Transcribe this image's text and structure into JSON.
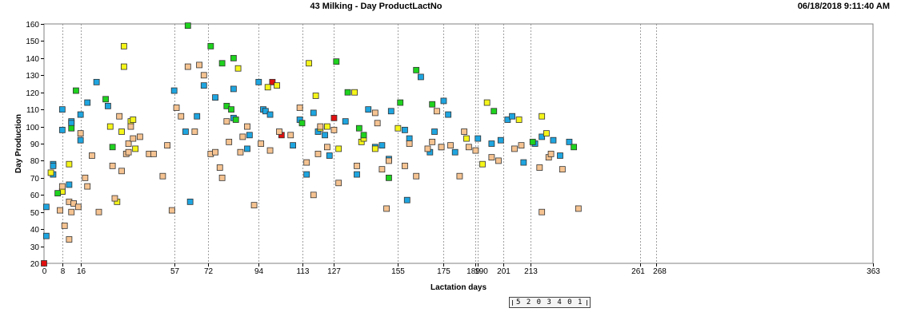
{
  "header": {
    "title": "43 Milking - Day ProductLactNo",
    "timestamp": "06/18/2018 9:11:40 AM"
  },
  "scrollbar": {
    "text": "5 2 0 3 4 0 1"
  },
  "chart_data": {
    "type": "scatter",
    "title": "43 Milking - Day ProductLactNo",
    "xlabel": "Lactation days",
    "ylabel": "Day Production",
    "xlim": [
      0,
      363
    ],
    "ylim": [
      20,
      160
    ],
    "yticks": [
      20,
      30,
      40,
      50,
      60,
      70,
      80,
      90,
      100,
      110,
      120,
      130,
      140,
      150,
      160
    ],
    "xticks": [
      0,
      8,
      16,
      57,
      72,
      94,
      113,
      127,
      155,
      175,
      189,
      190,
      201,
      213,
      261,
      268,
      363
    ],
    "xtick_labels": [
      "0",
      "8",
      "16",
      "57",
      "72",
      "94",
      "113",
      "127",
      "155",
      "175",
      "189",
      "190",
      "201",
      "213",
      "261",
      "268",
      "363"
    ],
    "grid": "vertical dashed lines at x ticks",
    "colors": {
      "red": "#e01010",
      "blue": "#1ea5e0",
      "yellow": "#f5f51a",
      "green": "#1ed21e",
      "tan": "#f5c391"
    },
    "series": [
      {
        "color": "red",
        "points": [
          [
            0,
            20
          ],
          [
            100,
            126
          ],
          [
            104,
            95
          ],
          [
            127,
            105
          ]
        ]
      },
      {
        "color": "blue",
        "points": [
          [
            1,
            36
          ],
          [
            1,
            53
          ],
          [
            4,
            78
          ],
          [
            4,
            77
          ],
          [
            4,
            72
          ],
          [
            8,
            110
          ],
          [
            8,
            98
          ],
          [
            8,
            62
          ],
          [
            11,
            66
          ],
          [
            12,
            103
          ],
          [
            12,
            102
          ],
          [
            16,
            107
          ],
          [
            16,
            92
          ],
          [
            19,
            114
          ],
          [
            23,
            126
          ],
          [
            28,
            112
          ],
          [
            57,
            121
          ],
          [
            62,
            97
          ],
          [
            64,
            56
          ],
          [
            67,
            106
          ],
          [
            70,
            124
          ],
          [
            75,
            117
          ],
          [
            83,
            105
          ],
          [
            83,
            122
          ],
          [
            89,
            87
          ],
          [
            90,
            95
          ],
          [
            94,
            126
          ],
          [
            96,
            110
          ],
          [
            97,
            109
          ],
          [
            99,
            107
          ],
          [
            109,
            89
          ],
          [
            112,
            104
          ],
          [
            115,
            72
          ],
          [
            118,
            108
          ],
          [
            120,
            97
          ],
          [
            123,
            95
          ],
          [
            125,
            83
          ],
          [
            132,
            103
          ],
          [
            137,
            72
          ],
          [
            142,
            110
          ],
          [
            145,
            88
          ],
          [
            148,
            89
          ],
          [
            151,
            81
          ],
          [
            152,
            109
          ],
          [
            158,
            98
          ],
          [
            159,
            57
          ],
          [
            160,
            93
          ],
          [
            165,
            129
          ],
          [
            169,
            85
          ],
          [
            171,
            97
          ],
          [
            174,
            88
          ],
          [
            175,
            115
          ],
          [
            177,
            107
          ],
          [
            180,
            85
          ],
          [
            190,
            93
          ],
          [
            196,
            90
          ],
          [
            200,
            92
          ],
          [
            203,
            104
          ],
          [
            205,
            106
          ],
          [
            210,
            79
          ],
          [
            215,
            90
          ],
          [
            218,
            94
          ],
          [
            223,
            92
          ],
          [
            226,
            83
          ],
          [
            230,
            91
          ]
        ]
      },
      {
        "color": "yellow",
        "points": [
          [
            3,
            73
          ],
          [
            8,
            62
          ],
          [
            11,
            78
          ],
          [
            29,
            100
          ],
          [
            32,
            56
          ],
          [
            34,
            97
          ],
          [
            35,
            147
          ],
          [
            35,
            135
          ],
          [
            38,
            103
          ],
          [
            39,
            104
          ],
          [
            40,
            87
          ],
          [
            85,
            134
          ],
          [
            98,
            123
          ],
          [
            102,
            124
          ],
          [
            116,
            137
          ],
          [
            119,
            118
          ],
          [
            121,
            99
          ],
          [
            124,
            100
          ],
          [
            129,
            87
          ],
          [
            136,
            120
          ],
          [
            139,
            91
          ],
          [
            140,
            93
          ],
          [
            145,
            87
          ],
          [
            155,
            99
          ],
          [
            185,
            93
          ],
          [
            192,
            78
          ],
          [
            194,
            114
          ],
          [
            208,
            104
          ],
          [
            218,
            106
          ],
          [
            220,
            96
          ]
        ]
      },
      {
        "color": "green",
        "points": [
          [
            6,
            61
          ],
          [
            12,
            99
          ],
          [
            14,
            121
          ],
          [
            27,
            116
          ],
          [
            30,
            88
          ],
          [
            63,
            159
          ],
          [
            73,
            147
          ],
          [
            78,
            137
          ],
          [
            80,
            112
          ],
          [
            82,
            110
          ],
          [
            83,
            140
          ],
          [
            84,
            104
          ],
          [
            113,
            102
          ],
          [
            128,
            138
          ],
          [
            133,
            120
          ],
          [
            138,
            99
          ],
          [
            140,
            95
          ],
          [
            151,
            70
          ],
          [
            156,
            114
          ],
          [
            163,
            133
          ],
          [
            170,
            113
          ],
          [
            197,
            109
          ],
          [
            214,
            91
          ],
          [
            232,
            88
          ]
        ]
      },
      {
        "color": "tan",
        "points": [
          [
            7,
            51
          ],
          [
            8,
            65
          ],
          [
            9,
            42
          ],
          [
            11,
            34
          ],
          [
            11,
            56
          ],
          [
            12,
            50
          ],
          [
            13,
            55
          ],
          [
            15,
            53
          ],
          [
            16,
            96
          ],
          [
            18,
            70
          ],
          [
            19,
            65
          ],
          [
            21,
            83
          ],
          [
            24,
            50
          ],
          [
            30,
            77
          ],
          [
            31,
            58
          ],
          [
            33,
            106
          ],
          [
            34,
            74
          ],
          [
            36,
            84
          ],
          [
            37,
            85
          ],
          [
            37,
            90
          ],
          [
            38,
            100
          ],
          [
            39,
            93
          ],
          [
            42,
            94
          ],
          [
            46,
            84
          ],
          [
            48,
            84
          ],
          [
            52,
            71
          ],
          [
            54,
            89
          ],
          [
            56,
            51
          ],
          [
            58,
            111
          ],
          [
            60,
            106
          ],
          [
            63,
            135
          ],
          [
            66,
            97
          ],
          [
            68,
            136
          ],
          [
            70,
            130
          ],
          [
            73,
            84
          ],
          [
            75,
            85
          ],
          [
            77,
            76
          ],
          [
            78,
            70
          ],
          [
            80,
            103
          ],
          [
            81,
            91
          ],
          [
            86,
            85
          ],
          [
            87,
            94
          ],
          [
            89,
            100
          ],
          [
            92,
            54
          ],
          [
            95,
            90
          ],
          [
            99,
            86
          ],
          [
            103,
            97
          ],
          [
            108,
            95
          ],
          [
            112,
            111
          ],
          [
            115,
            79
          ],
          [
            118,
            60
          ],
          [
            120,
            84
          ],
          [
            121,
            100
          ],
          [
            124,
            88
          ],
          [
            127,
            98
          ],
          [
            129,
            67
          ],
          [
            137,
            77
          ],
          [
            145,
            108
          ],
          [
            146,
            102
          ],
          [
            148,
            75
          ],
          [
            150,
            52
          ],
          [
            151,
            80
          ],
          [
            158,
            77
          ],
          [
            160,
            90
          ],
          [
            163,
            71
          ],
          [
            168,
            87
          ],
          [
            170,
            91
          ],
          [
            172,
            109
          ],
          [
            174,
            88
          ],
          [
            178,
            89
          ],
          [
            182,
            71
          ],
          [
            184,
            97
          ],
          [
            186,
            88
          ],
          [
            189,
            86
          ],
          [
            196,
            82
          ],
          [
            199,
            80
          ],
          [
            206,
            87
          ],
          [
            209,
            89
          ],
          [
            217,
            76
          ],
          [
            218,
            50
          ],
          [
            221,
            82
          ],
          [
            222,
            84
          ],
          [
            227,
            75
          ],
          [
            234,
            52
          ]
        ]
      }
    ]
  }
}
